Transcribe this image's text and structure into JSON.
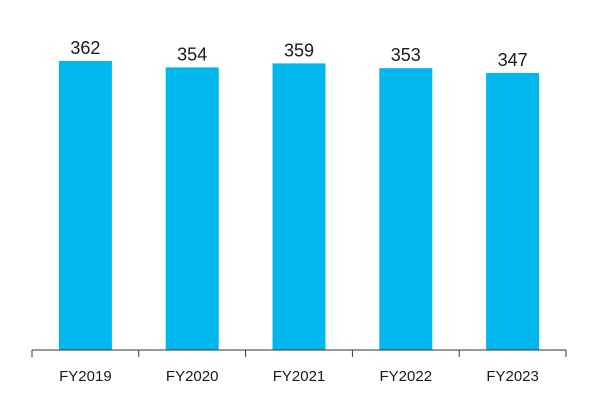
{
  "chart_data": {
    "type": "bar",
    "categories": [
      "FY2019",
      "FY2020",
      "FY2021",
      "FY2022",
      "FY2023"
    ],
    "values": [
      362,
      354,
      359,
      353,
      347
    ],
    "data_labels": [
      "362",
      "354",
      "359",
      "353",
      "347"
    ],
    "title": "",
    "xlabel": "",
    "ylabel": "",
    "ylim": [
      0,
      362
    ],
    "grid": false,
    "legend": "none",
    "y_axis_visible": false,
    "bar_color": "#00B7EE",
    "axis_color": "#333333"
  }
}
